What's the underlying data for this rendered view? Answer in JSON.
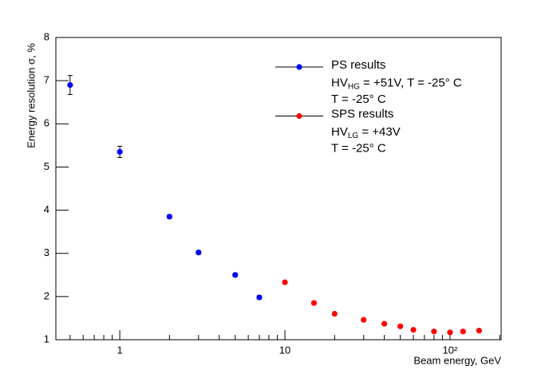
{
  "chart_data": {
    "type": "scatter",
    "x_label": "Beam energy, GeV",
    "y_label": "Energy resolution σ, %",
    "log_x": true,
    "xlim": [
      0.41,
      204
    ],
    "ylim": [
      1,
      8
    ],
    "xticks": [
      1,
      10,
      {
        "value": 100,
        "label": "10²"
      }
    ],
    "xminorticks": [
      0.5,
      0.6,
      0.7,
      0.8,
      0.9,
      2,
      3,
      4,
      5,
      6,
      7,
      8,
      9,
      20,
      30,
      40,
      50,
      60,
      70,
      80,
      90,
      200
    ],
    "yticks": [
      1,
      2,
      3,
      4,
      5,
      6,
      7,
      8
    ],
    "series": [
      {
        "name": "PS results",
        "color": "#0000ff",
        "x": [
          0.5,
          1,
          2,
          3,
          5,
          7
        ],
        "values": [
          6.9,
          5.35,
          3.85,
          3.02,
          2.5,
          1.98
        ],
        "errors": [
          0.22,
          0.13,
          0.04,
          0.04,
          0.04,
          0.04
        ],
        "notes": [
          [
            "HV",
            "HG",
            " = +51V, T = -25° C"
          ],
          [
            "T = -25° C"
          ]
        ]
      },
      {
        "name": "SPS results",
        "color": "#ff0000",
        "x": [
          10,
          15,
          20,
          30,
          40,
          50,
          60,
          80,
          100,
          120,
          150
        ],
        "values": [
          2.33,
          1.85,
          1.6,
          1.46,
          1.37,
          1.31,
          1.23,
          1.19,
          1.17,
          1.19,
          1.21
        ],
        "notes": [
          [
            "HV",
            "LG",
            " = +43V"
          ],
          [
            "T = -25° C"
          ]
        ]
      }
    ]
  }
}
